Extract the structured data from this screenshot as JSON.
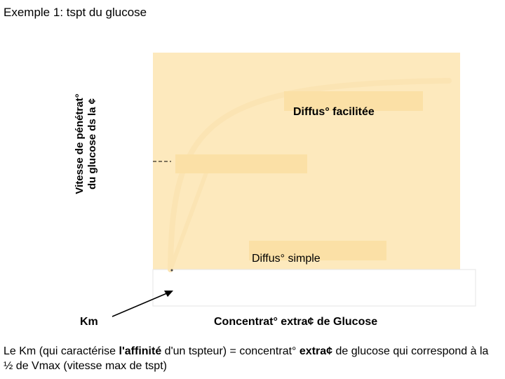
{
  "slide": {
    "title": "Exemple 1: tspt du glucose",
    "caption": {
      "part1": "Le Km (qui caractérise ",
      "bold1": "l'affinité",
      "part2": " d'un tspteur) = concentrat° ",
      "bold2": "extra¢",
      "part3": " de glucose qui correspond à la ½ de Vmax (vitesse max de tspt)"
    }
  },
  "chart_data": {
    "type": "line",
    "ylabel_line1": "Vitesse de pénétrat°",
    "ylabel_line2": "du glucose ds la ¢",
    "xlabel": "Concentrat° extra¢ de Glucose",
    "km_label": "Km",
    "series": [
      {
        "name": "Diffus° facilitée",
        "label": "Diffus° facilitée",
        "shape": "saturation curve (Michaelis-Menten)"
      },
      {
        "name": "Diffus° simple",
        "label": "Diffus° simple",
        "shape": "linear"
      }
    ],
    "colors": {
      "plot_background": "#fde9bd",
      "label_box": "#fbe0a6",
      "curve": "#fbe4b3",
      "lower_band": "#ffffff",
      "arrow": "#000000"
    }
  }
}
